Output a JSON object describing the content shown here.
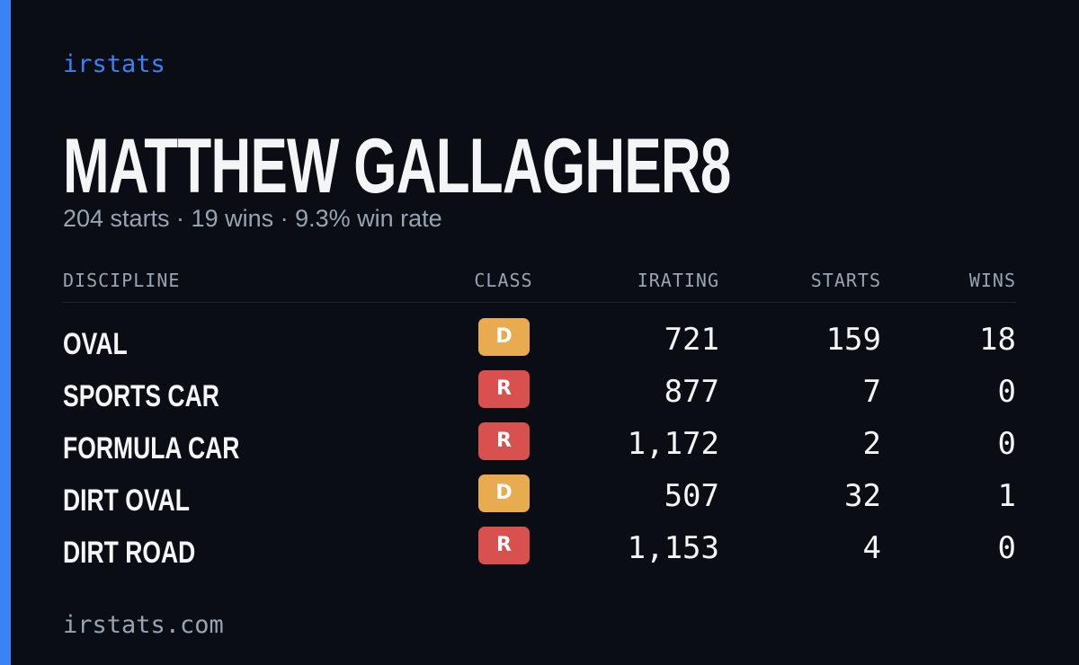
{
  "brand": "irstats",
  "name": "MATTHEW GALLAGHER8",
  "summary": "204 starts · 19 wins · 9.3% win rate",
  "table": {
    "columns": [
      "DISCIPLINE",
      "CLASS",
      "IRATING",
      "STARTS",
      "WINS"
    ],
    "rows": [
      [
        "OVAL",
        "D",
        "721",
        "159",
        "18"
      ],
      [
        "SPORTS CAR",
        "R",
        "877",
        "7",
        "0"
      ],
      [
        "FORMULA CAR",
        "R",
        "1,172",
        "2",
        "0"
      ],
      [
        "DIRT OVAL",
        "D",
        "507",
        "32",
        "1"
      ],
      [
        "DIRT ROAD",
        "R",
        "1,153",
        "4",
        "0"
      ]
    ],
    "class_colors": {
      "D": "#e8ab4f",
      "R": "#d9514e"
    }
  },
  "footer": "irstats.com"
}
